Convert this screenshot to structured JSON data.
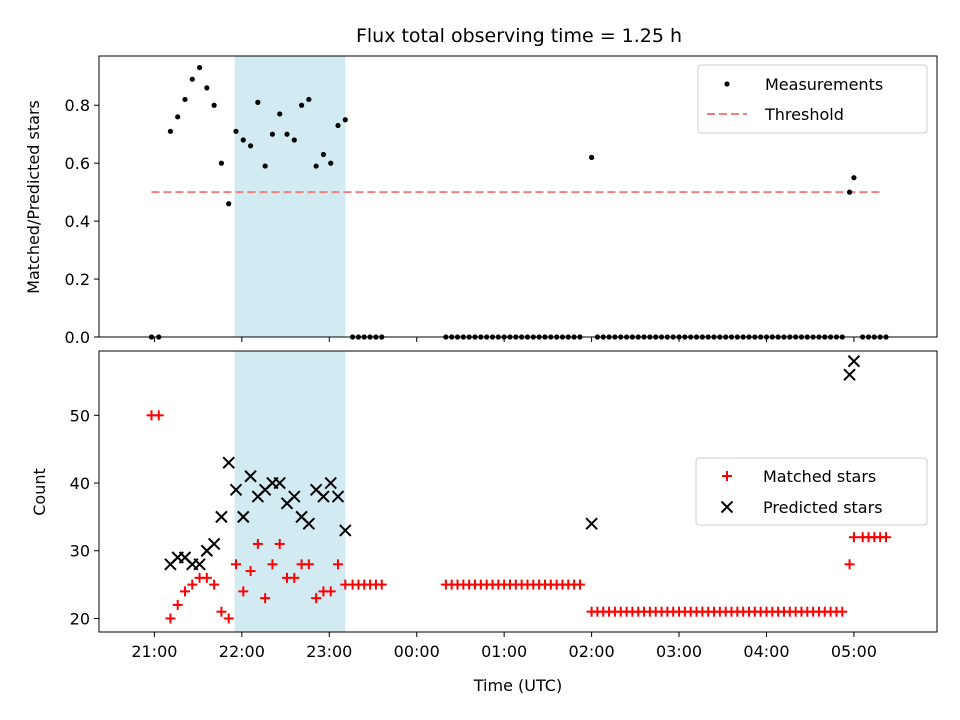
{
  "title": "Flux total observing time = 1.25 h",
  "colors": {
    "measurement": "#000000",
    "threshold": "#f08080",
    "matched": "#ff0000",
    "predicted": "#000000",
    "span": "#add8e6"
  },
  "chart_data": [
    {
      "type": "scatter",
      "ylabel": "Matched/Predicted stars",
      "ylim": [
        0,
        0.97
      ],
      "yticks": [
        0.0,
        0.2,
        0.4,
        0.6,
        0.8
      ],
      "ytick_labels": [
        "0.0",
        "0.2",
        "0.4",
        "0.6",
        "0.8"
      ],
      "highlight_span": [
        "21:55",
        "23:11"
      ],
      "legend": {
        "position": "top-right",
        "entries": [
          "Measurements",
          "Threshold"
        ]
      },
      "threshold": {
        "name": "Threshold",
        "value": 0.5,
        "x_range": [
          "20:58",
          "05:18"
        ]
      },
      "series": [
        {
          "name": "Measurements",
          "points": [
            [
              "20:58",
              0
            ],
            [
              "21:03",
              0
            ],
            [
              "21:11",
              0.71
            ],
            [
              "21:16",
              0.76
            ],
            [
              "21:21",
              0.82
            ],
            [
              "21:26",
              0.89
            ],
            [
              "21:31",
              0.93
            ],
            [
              "21:36",
              0.86
            ],
            [
              "21:41",
              0.8
            ],
            [
              "21:46",
              0.6
            ],
            [
              "21:51",
              0.46
            ],
            [
              "21:56",
              0.71
            ],
            [
              "22:01",
              0.68
            ],
            [
              "22:06",
              0.66
            ],
            [
              "22:11",
              0.81
            ],
            [
              "22:16",
              0.59
            ],
            [
              "22:21",
              0.7
            ],
            [
              "22:26",
              0.77
            ],
            [
              "22:31",
              0.7
            ],
            [
              "22:36",
              0.68
            ],
            [
              "22:41",
              0.8
            ],
            [
              "22:46",
              0.82
            ],
            [
              "22:51",
              0.59
            ],
            [
              "22:56",
              0.63
            ],
            [
              "23:01",
              0.6
            ],
            [
              "23:06",
              0.73
            ],
            [
              "23:11",
              0.75
            ],
            [
              "23:16",
              0
            ],
            [
              "23:20",
              0
            ],
            [
              "23:24",
              0
            ],
            [
              "23:28",
              0
            ],
            [
              "23:32",
              0
            ],
            [
              "23:36",
              0
            ],
            [
              "00:20",
              0
            ],
            [
              "00:24",
              0
            ],
            [
              "00:28",
              0
            ],
            [
              "00:32",
              0
            ],
            [
              "00:36",
              0
            ],
            [
              "00:40",
              0
            ],
            [
              "00:44",
              0
            ],
            [
              "00:48",
              0
            ],
            [
              "00:52",
              0
            ],
            [
              "00:56",
              0
            ],
            [
              "01:00",
              0
            ],
            [
              "01:04",
              0
            ],
            [
              "01:08",
              0
            ],
            [
              "01:12",
              0
            ],
            [
              "01:16",
              0
            ],
            [
              "01:20",
              0
            ],
            [
              "01:24",
              0
            ],
            [
              "01:28",
              0
            ],
            [
              "01:32",
              0
            ],
            [
              "01:36",
              0
            ],
            [
              "01:40",
              0
            ],
            [
              "01:44",
              0
            ],
            [
              "01:48",
              0
            ],
            [
              "01:52",
              0
            ],
            [
              "02:00",
              0.62
            ],
            [
              "02:04",
              0
            ],
            [
              "02:08",
              0
            ],
            [
              "02:12",
              0
            ],
            [
              "02:16",
              0
            ],
            [
              "02:20",
              0
            ],
            [
              "02:24",
              0
            ],
            [
              "02:28",
              0
            ],
            [
              "02:32",
              0
            ],
            [
              "02:36",
              0
            ],
            [
              "02:40",
              0
            ],
            [
              "02:44",
              0
            ],
            [
              "02:48",
              0
            ],
            [
              "02:52",
              0
            ],
            [
              "02:56",
              0
            ],
            [
              "03:00",
              0
            ],
            [
              "03:04",
              0
            ],
            [
              "03:08",
              0
            ],
            [
              "03:12",
              0
            ],
            [
              "03:16",
              0
            ],
            [
              "03:20",
              0
            ],
            [
              "03:24",
              0
            ],
            [
              "03:28",
              0
            ],
            [
              "03:32",
              0
            ],
            [
              "03:36",
              0
            ],
            [
              "03:40",
              0
            ],
            [
              "03:44",
              0
            ],
            [
              "03:48",
              0
            ],
            [
              "03:52",
              0
            ],
            [
              "03:56",
              0
            ],
            [
              "04:00",
              0
            ],
            [
              "04:04",
              0
            ],
            [
              "04:08",
              0
            ],
            [
              "04:12",
              0
            ],
            [
              "04:16",
              0
            ],
            [
              "04:20",
              0
            ],
            [
              "04:24",
              0
            ],
            [
              "04:28",
              0
            ],
            [
              "04:32",
              0
            ],
            [
              "04:36",
              0
            ],
            [
              "04:40",
              0
            ],
            [
              "04:44",
              0
            ],
            [
              "04:48",
              0
            ],
            [
              "04:52",
              0
            ],
            [
              "04:57",
              0.5
            ],
            [
              "05:00",
              0.55
            ],
            [
              "05:06",
              0
            ],
            [
              "05:10",
              0
            ],
            [
              "05:14",
              0
            ],
            [
              "05:18",
              0
            ],
            [
              "05:22",
              0
            ]
          ]
        }
      ]
    },
    {
      "type": "scatter",
      "xlabel": "Time (UTC)",
      "ylabel": "Count",
      "ylim": [
        18,
        59.5
      ],
      "yticks": [
        20,
        30,
        40,
        50
      ],
      "ytick_labels": [
        "20",
        "30",
        "40",
        "50"
      ],
      "xticks": [
        "21:00",
        "22:00",
        "23:00",
        "00:00",
        "01:00",
        "02:00",
        "03:00",
        "04:00",
        "05:00"
      ],
      "x_domain": [
        "20:22",
        "05:57"
      ],
      "highlight_span": [
        "21:55",
        "23:11"
      ],
      "legend": {
        "position": "center-right",
        "entries": [
          "Matched stars",
          "Predicted stars"
        ]
      },
      "series": [
        {
          "name": "Matched stars",
          "points": [
            [
              "20:58",
              50
            ],
            [
              "21:03",
              50
            ],
            [
              "21:11",
              20
            ],
            [
              "21:16",
              22
            ],
            [
              "21:21",
              24
            ],
            [
              "21:26",
              25
            ],
            [
              "21:31",
              26
            ],
            [
              "21:36",
              26
            ],
            [
              "21:41",
              25
            ],
            [
              "21:46",
              21
            ],
            [
              "21:51",
              20
            ],
            [
              "21:56",
              28
            ],
            [
              "22:01",
              24
            ],
            [
              "22:06",
              27
            ],
            [
              "22:11",
              31
            ],
            [
              "22:16",
              23
            ],
            [
              "22:21",
              28
            ],
            [
              "22:26",
              31
            ],
            [
              "22:31",
              26
            ],
            [
              "22:36",
              26
            ],
            [
              "22:41",
              28
            ],
            [
              "22:46",
              28
            ],
            [
              "22:51",
              23
            ],
            [
              "22:56",
              24
            ],
            [
              "23:01",
              24
            ],
            [
              "23:06",
              28
            ],
            [
              "23:11",
              25
            ],
            [
              "23:16",
              25
            ],
            [
              "23:20",
              25
            ],
            [
              "23:24",
              25
            ],
            [
              "23:28",
              25
            ],
            [
              "23:32",
              25
            ],
            [
              "23:36",
              25
            ],
            [
              "00:20",
              25
            ],
            [
              "00:24",
              25
            ],
            [
              "00:28",
              25
            ],
            [
              "00:32",
              25
            ],
            [
              "00:36",
              25
            ],
            [
              "00:40",
              25
            ],
            [
              "00:44",
              25
            ],
            [
              "00:48",
              25
            ],
            [
              "00:52",
              25
            ],
            [
              "00:56",
              25
            ],
            [
              "01:00",
              25
            ],
            [
              "01:04",
              25
            ],
            [
              "01:08",
              25
            ],
            [
              "01:12",
              25
            ],
            [
              "01:16",
              25
            ],
            [
              "01:20",
              25
            ],
            [
              "01:24",
              25
            ],
            [
              "01:28",
              25
            ],
            [
              "01:32",
              25
            ],
            [
              "01:36",
              25
            ],
            [
              "01:40",
              25
            ],
            [
              "01:44",
              25
            ],
            [
              "01:48",
              25
            ],
            [
              "01:52",
              25
            ],
            [
              "02:00",
              21
            ],
            [
              "02:04",
              21
            ],
            [
              "02:08",
              21
            ],
            [
              "02:12",
              21
            ],
            [
              "02:16",
              21
            ],
            [
              "02:20",
              21
            ],
            [
              "02:24",
              21
            ],
            [
              "02:28",
              21
            ],
            [
              "02:32",
              21
            ],
            [
              "02:36",
              21
            ],
            [
              "02:40",
              21
            ],
            [
              "02:44",
              21
            ],
            [
              "02:48",
              21
            ],
            [
              "02:52",
              21
            ],
            [
              "02:56",
              21
            ],
            [
              "03:00",
              21
            ],
            [
              "03:04",
              21
            ],
            [
              "03:08",
              21
            ],
            [
              "03:12",
              21
            ],
            [
              "03:16",
              21
            ],
            [
              "03:20",
              21
            ],
            [
              "03:24",
              21
            ],
            [
              "03:28",
              21
            ],
            [
              "03:32",
              21
            ],
            [
              "03:36",
              21
            ],
            [
              "03:40",
              21
            ],
            [
              "03:44",
              21
            ],
            [
              "03:48",
              21
            ],
            [
              "03:52",
              21
            ],
            [
              "03:56",
              21
            ],
            [
              "04:00",
              21
            ],
            [
              "04:04",
              21
            ],
            [
              "04:08",
              21
            ],
            [
              "04:12",
              21
            ],
            [
              "04:16",
              21
            ],
            [
              "04:20",
              21
            ],
            [
              "04:24",
              21
            ],
            [
              "04:28",
              21
            ],
            [
              "04:32",
              21
            ],
            [
              "04:36",
              21
            ],
            [
              "04:40",
              21
            ],
            [
              "04:44",
              21
            ],
            [
              "04:48",
              21
            ],
            [
              "04:52",
              21
            ],
            [
              "04:57",
              28
            ],
            [
              "05:00",
              32
            ],
            [
              "05:06",
              32
            ],
            [
              "05:10",
              32
            ],
            [
              "05:14",
              32
            ],
            [
              "05:18",
              32
            ],
            [
              "05:22",
              32
            ]
          ]
        },
        {
          "name": "Predicted stars",
          "points": [
            [
              "21:11",
              28
            ],
            [
              "21:16",
              29
            ],
            [
              "21:21",
              29
            ],
            [
              "21:26",
              28
            ],
            [
              "21:31",
              28
            ],
            [
              "21:36",
              30
            ],
            [
              "21:41",
              31
            ],
            [
              "21:46",
              35
            ],
            [
              "21:51",
              43
            ],
            [
              "21:56",
              39
            ],
            [
              "22:01",
              35
            ],
            [
              "22:06",
              41
            ],
            [
              "22:11",
              38
            ],
            [
              "22:16",
              39
            ],
            [
              "22:21",
              40
            ],
            [
              "22:26",
              40
            ],
            [
              "22:31",
              37
            ],
            [
              "22:36",
              38
            ],
            [
              "22:41",
              35
            ],
            [
              "22:46",
              34
            ],
            [
              "22:51",
              39
            ],
            [
              "22:56",
              38
            ],
            [
              "23:01",
              40
            ],
            [
              "23:06",
              38
            ],
            [
              "23:11",
              33
            ],
            [
              "02:00",
              34
            ],
            [
              "04:57",
              56
            ],
            [
              "05:00",
              58
            ]
          ]
        }
      ]
    }
  ]
}
